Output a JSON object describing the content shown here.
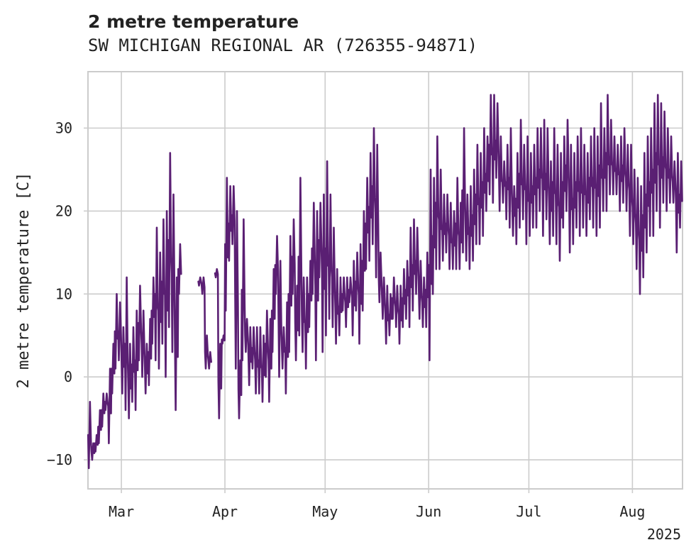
{
  "chart_data": {
    "type": "line",
    "title": "2 metre temperature",
    "subtitle": "SW MICHIGAN REGIONAL AR (726355-94871)",
    "ylabel": "2 metre temperature [C]",
    "xlabel": "",
    "x_range": [
      "2025-02-19",
      "2025-08-16"
    ],
    "ylim": [
      -13.5,
      36.8
    ],
    "yticks": [
      -10,
      0,
      10,
      20,
      30
    ],
    "xticks": [
      {
        "date": "2025-03-01",
        "label": "Mar"
      },
      {
        "date": "2025-04-01",
        "label": "Apr"
      },
      {
        "date": "2025-05-01",
        "label": "May"
      },
      {
        "date": "2025-06-01",
        "label": "Jun"
      },
      {
        "date": "2025-07-01",
        "label": "Jul"
      },
      {
        "date": "2025-08-01",
        "label": "Aug"
      }
    ],
    "year_label": "2025",
    "grid": true,
    "legend": "none",
    "line_color": "#5a1f73",
    "series": [
      {
        "name": "",
        "daily_min_max": [
          [
            "2025-02-19",
            -11,
            -3
          ],
          [
            "2025-02-20",
            -10,
            -8
          ],
          [
            "2025-02-21",
            -9,
            -7
          ],
          [
            "2025-02-22",
            -8,
            -4
          ],
          [
            "2025-02-23",
            -6,
            -2
          ],
          [
            "2025-02-24",
            -4,
            -2
          ],
          [
            "2025-02-25",
            -8,
            1
          ],
          [
            "2025-02-26",
            -2,
            4
          ],
          [
            "2025-02-27",
            1,
            10
          ],
          [
            "2025-02-28",
            2,
            9
          ],
          [
            "2025-03-01",
            -2,
            6
          ],
          [
            "2025-03-02",
            -4,
            12
          ],
          [
            "2025-03-03",
            -5,
            4
          ],
          [
            "2025-03-04",
            -3,
            6
          ],
          [
            "2025-03-05",
            -4,
            8
          ],
          [
            "2025-03-06",
            2,
            11
          ],
          [
            "2025-03-07",
            0,
            8
          ],
          [
            "2025-03-08",
            -2,
            4
          ],
          [
            "2025-03-09",
            -1,
            7
          ],
          [
            "2025-03-10",
            4,
            12
          ],
          [
            "2025-03-11",
            2,
            18
          ],
          [
            "2025-03-12",
            1,
            15
          ],
          [
            "2025-03-13",
            4,
            19
          ],
          [
            "2025-03-14",
            0,
            20
          ],
          [
            "2025-03-15",
            6,
            27
          ],
          [
            "2025-03-16",
            3,
            22
          ],
          [
            "2025-03-17",
            -4,
            12
          ],
          [
            "2025-03-18",
            10,
            16
          ],
          [
            "2025-03-24",
            11,
            12
          ],
          [
            "2025-03-25",
            10,
            12
          ],
          [
            "2025-03-26",
            1,
            5
          ],
          [
            "2025-03-27",
            1,
            3
          ],
          [
            "2025-03-29",
            12,
            13
          ],
          [
            "2025-03-30",
            -5,
            4
          ],
          [
            "2025-03-31",
            4,
            5
          ],
          [
            "2025-04-01",
            8,
            24
          ],
          [
            "2025-04-02",
            14,
            23
          ],
          [
            "2025-04-03",
            16,
            23
          ],
          [
            "2025-04-04",
            1,
            20
          ],
          [
            "2025-04-05",
            -5,
            2
          ],
          [
            "2025-04-06",
            2,
            19
          ],
          [
            "2025-04-07",
            3,
            7
          ],
          [
            "2025-04-08",
            -1,
            6
          ],
          [
            "2025-04-09",
            1,
            6
          ],
          [
            "2025-04-10",
            -2,
            6
          ],
          [
            "2025-04-11",
            -2,
            6
          ],
          [
            "2025-04-12",
            -3,
            5
          ],
          [
            "2025-04-13",
            0,
            8
          ],
          [
            "2025-04-14",
            -3,
            7
          ],
          [
            "2025-04-15",
            3,
            13
          ],
          [
            "2025-04-16",
            10,
            17
          ],
          [
            "2025-04-17",
            0,
            14
          ],
          [
            "2025-04-18",
            1,
            6
          ],
          [
            "2025-04-19",
            -2,
            9
          ],
          [
            "2025-04-20",
            3,
            17
          ],
          [
            "2025-04-21",
            10,
            19
          ],
          [
            "2025-04-22",
            2,
            11
          ],
          [
            "2025-04-23",
            5,
            24
          ],
          [
            "2025-04-24",
            3,
            12
          ],
          [
            "2025-04-25",
            1,
            12
          ],
          [
            "2025-04-26",
            6,
            14
          ],
          [
            "2025-04-27",
            10,
            21
          ],
          [
            "2025-04-28",
            2,
            20
          ],
          [
            "2025-04-29",
            12,
            21
          ],
          [
            "2025-04-30",
            3,
            22
          ],
          [
            "2025-05-01",
            5,
            26
          ],
          [
            "2025-05-02",
            7,
            22
          ],
          [
            "2025-05-03",
            6,
            18
          ],
          [
            "2025-05-04",
            4,
            13
          ],
          [
            "2025-05-05",
            5,
            12
          ],
          [
            "2025-05-06",
            8,
            12
          ],
          [
            "2025-05-07",
            6,
            12
          ],
          [
            "2025-05-08",
            9,
            12
          ],
          [
            "2025-05-09",
            5,
            14
          ],
          [
            "2025-05-10",
            8,
            15
          ],
          [
            "2025-05-11",
            4,
            16
          ],
          [
            "2025-05-12",
            8,
            20
          ],
          [
            "2025-05-13",
            13,
            24
          ],
          [
            "2025-05-14",
            14,
            27
          ],
          [
            "2025-05-15",
            16,
            30
          ],
          [
            "2025-05-16",
            12,
            28
          ],
          [
            "2025-05-17",
            9,
            15
          ],
          [
            "2025-05-18",
            7,
            12
          ],
          [
            "2025-05-19",
            4,
            11
          ],
          [
            "2025-05-20",
            5,
            10
          ],
          [
            "2025-05-21",
            7,
            12
          ],
          [
            "2025-05-22",
            6,
            11
          ],
          [
            "2025-05-23",
            4,
            11
          ],
          [
            "2025-05-24",
            6,
            13
          ],
          [
            "2025-05-25",
            7,
            14
          ],
          [
            "2025-05-26",
            6,
            18
          ],
          [
            "2025-05-27",
            8,
            19
          ],
          [
            "2025-05-28",
            10,
            18
          ],
          [
            "2025-05-29",
            7,
            14
          ],
          [
            "2025-05-30",
            6,
            12
          ],
          [
            "2025-05-31",
            6,
            15
          ],
          [
            "2025-06-01",
            2,
            25
          ],
          [
            "2025-06-02",
            10,
            24
          ],
          [
            "2025-06-03",
            13,
            29
          ],
          [
            "2025-06-04",
            13,
            25
          ],
          [
            "2025-06-05",
            14,
            22
          ],
          [
            "2025-06-06",
            15,
            22
          ],
          [
            "2025-06-07",
            13,
            21
          ],
          [
            "2025-06-08",
            13,
            20
          ],
          [
            "2025-06-09",
            13,
            24
          ],
          [
            "2025-06-10",
            13,
            21
          ],
          [
            "2025-06-11",
            15,
            30
          ],
          [
            "2025-06-12",
            14,
            22
          ],
          [
            "2025-06-13",
            13,
            23
          ],
          [
            "2025-06-14",
            14,
            25
          ],
          [
            "2025-06-15",
            16,
            28
          ],
          [
            "2025-06-16",
            16,
            27
          ],
          [
            "2025-06-17",
            17,
            30
          ],
          [
            "2025-06-18",
            20,
            29
          ],
          [
            "2025-06-19",
            22,
            34
          ],
          [
            "2025-06-20",
            21,
            34
          ],
          [
            "2025-06-21",
            24,
            33
          ],
          [
            "2025-06-22",
            20,
            29
          ],
          [
            "2025-06-23",
            21,
            26
          ],
          [
            "2025-06-24",
            19,
            28
          ],
          [
            "2025-06-25",
            18,
            30
          ],
          [
            "2025-06-26",
            17,
            23
          ],
          [
            "2025-06-27",
            16,
            27
          ],
          [
            "2025-06-28",
            18,
            31
          ],
          [
            "2025-06-29",
            19,
            28
          ],
          [
            "2025-06-30",
            16,
            29
          ],
          [
            "2025-07-01",
            17,
            27
          ],
          [
            "2025-07-02",
            18,
            28
          ],
          [
            "2025-07-03",
            18,
            30
          ],
          [
            "2025-07-04",
            20,
            30
          ],
          [
            "2025-07-05",
            17,
            31
          ],
          [
            "2025-07-06",
            19,
            30
          ],
          [
            "2025-07-07",
            16,
            26
          ],
          [
            "2025-07-08",
            17,
            30
          ],
          [
            "2025-07-09",
            16,
            28
          ],
          [
            "2025-07-10",
            14,
            27
          ],
          [
            "2025-07-11",
            18,
            29
          ],
          [
            "2025-07-12",
            20,
            31
          ],
          [
            "2025-07-13",
            15,
            28
          ],
          [
            "2025-07-14",
            16,
            27
          ],
          [
            "2025-07-15",
            18,
            29
          ],
          [
            "2025-07-16",
            17,
            30
          ],
          [
            "2025-07-17",
            18,
            28
          ],
          [
            "2025-07-18",
            17,
            27
          ],
          [
            "2025-07-19",
            19,
            29
          ],
          [
            "2025-07-20",
            18,
            30
          ],
          [
            "2025-07-21",
            17,
            29
          ],
          [
            "2025-07-22",
            18,
            33
          ],
          [
            "2025-07-23",
            20,
            30
          ],
          [
            "2025-07-24",
            20,
            34
          ],
          [
            "2025-07-25",
            22,
            31
          ],
          [
            "2025-07-26",
            22,
            29
          ],
          [
            "2025-07-27",
            22,
            28
          ],
          [
            "2025-07-28",
            20,
            29
          ],
          [
            "2025-07-29",
            21,
            30
          ],
          [
            "2025-07-30",
            20,
            28
          ],
          [
            "2025-07-31",
            17,
            28
          ],
          [
            "2025-08-01",
            16,
            25
          ],
          [
            "2025-08-02",
            13,
            24
          ],
          [
            "2025-08-03",
            10,
            23
          ],
          [
            "2025-08-04",
            12,
            27
          ],
          [
            "2025-08-05",
            15,
            29
          ],
          [
            "2025-08-06",
            17,
            30
          ],
          [
            "2025-08-07",
            17,
            33
          ],
          [
            "2025-08-08",
            20,
            34
          ],
          [
            "2025-08-09",
            18,
            33
          ],
          [
            "2025-08-10",
            21,
            32
          ],
          [
            "2025-08-11",
            20,
            30
          ],
          [
            "2025-08-12",
            21,
            29
          ],
          [
            "2025-08-13",
            21,
            26
          ],
          [
            "2025-08-14",
            15,
            27
          ],
          [
            "2025-08-15",
            18,
            26
          ]
        ]
      }
    ]
  }
}
